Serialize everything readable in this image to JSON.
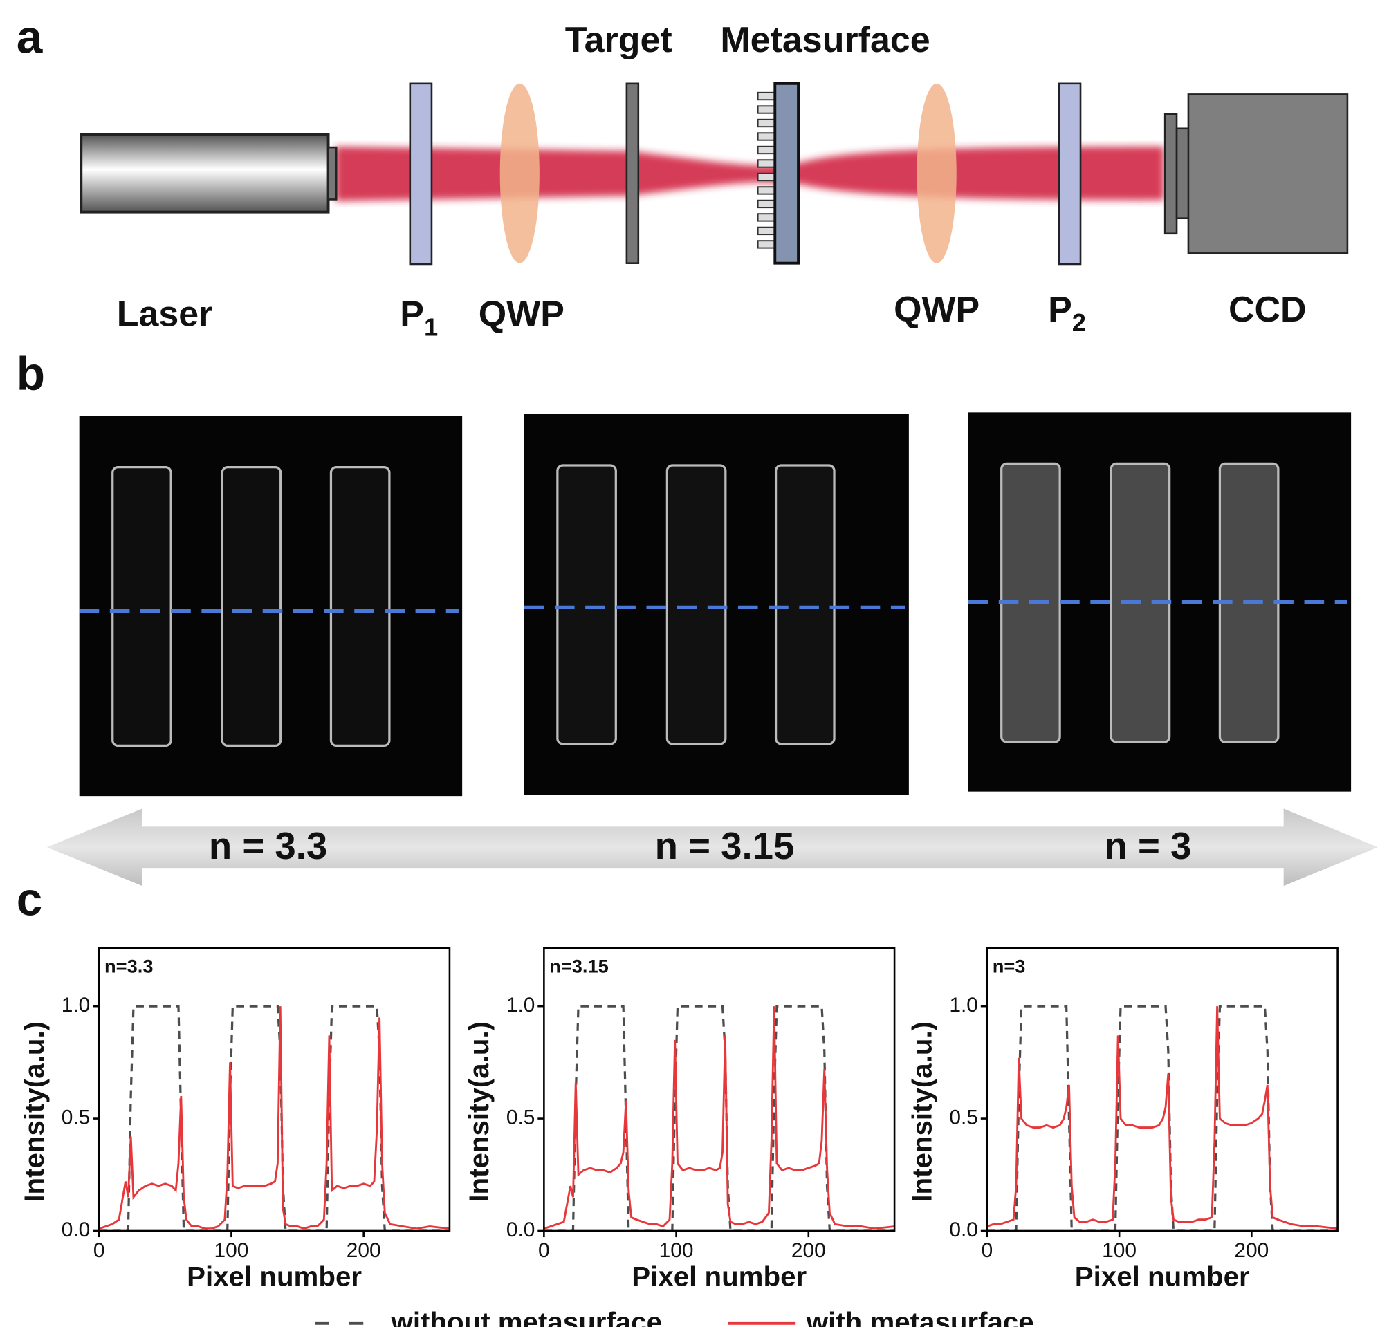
{
  "panel_labels": [
    "a",
    "b",
    "c"
  ],
  "setup": {
    "top_labels": [
      "Target",
      "Metasurface"
    ],
    "bottom_labels": [
      {
        "text": "Laser"
      },
      {
        "text": "P",
        "sub": "1"
      },
      {
        "text": "QWP"
      },
      {
        "text": "QWP"
      },
      {
        "text": "P",
        "sub": "2"
      },
      {
        "text": "CCD"
      }
    ]
  },
  "refractive_index_labels": [
    "n = 3.3",
    "n = 3.15",
    "n = 3"
  ],
  "chart_data": [
    {
      "type": "line",
      "annotation": "n=3.3",
      "x_label": "Pixel number",
      "y_label": "Intensity(a.u.)",
      "xlim": [
        0,
        265
      ],
      "ylim": [
        0,
        1.26
      ],
      "xticks": [
        0,
        100,
        200
      ],
      "yticks": [
        {
          "value": 0,
          "label": "0.0"
        },
        {
          "value": 0.5,
          "label": "0.5"
        },
        {
          "value": 1,
          "label": "1.0"
        }
      ],
      "x": [
        0,
        5,
        10,
        15,
        20,
        22,
        24,
        26,
        30,
        35,
        40,
        45,
        50,
        55,
        58,
        60,
        62,
        64,
        66,
        70,
        75,
        80,
        85,
        90,
        95,
        97,
        99,
        101,
        105,
        110,
        115,
        120,
        125,
        130,
        133,
        135,
        137,
        139,
        141,
        145,
        150,
        155,
        160,
        165,
        170,
        172,
        174,
        176,
        180,
        185,
        190,
        195,
        200,
        205,
        208,
        210,
        212,
        214,
        216,
        220,
        230,
        240,
        250,
        265
      ],
      "series": [
        {
          "name": "without metasurface",
          "color": "#4d4d4d",
          "dashed": true,
          "values": [
            0,
            0,
            0,
            0,
            0,
            0,
            0.6,
            1,
            1,
            1,
            1,
            1,
            1,
            1,
            1,
            1,
            0.5,
            0,
            0,
            0,
            0,
            0,
            0,
            0,
            0,
            0,
            0.6,
            1,
            1,
            1,
            1,
            1,
            1,
            1,
            1,
            1,
            0.8,
            0.2,
            0,
            0,
            0,
            0,
            0,
            0,
            0,
            0,
            0.6,
            1,
            1,
            1,
            1,
            1,
            1,
            1,
            1,
            1,
            0.8,
            0.2,
            0,
            0,
            0,
            0,
            0,
            0
          ]
        },
        {
          "name": "with metasurface",
          "color": "#e8373a",
          "dashed": false,
          "values": [
            0.01,
            0.02,
            0.03,
            0.05,
            0.22,
            0.15,
            0.42,
            0.15,
            0.18,
            0.2,
            0.21,
            0.2,
            0.21,
            0.2,
            0.18,
            0.3,
            0.6,
            0.15,
            0.05,
            0.02,
            0.02,
            0.01,
            0.01,
            0.02,
            0.05,
            0.25,
            0.75,
            0.2,
            0.19,
            0.2,
            0.2,
            0.2,
            0.2,
            0.21,
            0.22,
            0.3,
            1.0,
            0.1,
            0.03,
            0.02,
            0.02,
            0.01,
            0.02,
            0.02,
            0.05,
            0.3,
            0.87,
            0.18,
            0.2,
            0.19,
            0.2,
            0.2,
            0.21,
            0.2,
            0.22,
            0.45,
            0.95,
            0.3,
            0.08,
            0.03,
            0.02,
            0.01,
            0.02,
            0.01
          ]
        }
      ]
    },
    {
      "type": "line",
      "annotation": "n=3.15",
      "x_label": "Pixel number",
      "y_label": "Intensity(a.u.)",
      "xlim": [
        0,
        265
      ],
      "ylim": [
        0,
        1.26
      ],
      "xticks": [
        0,
        100,
        200
      ],
      "yticks": [
        {
          "value": 0,
          "label": "0.0"
        },
        {
          "value": 0.5,
          "label": "0.5"
        },
        {
          "value": 1,
          "label": "1.0"
        }
      ],
      "x": [
        0,
        5,
        10,
        15,
        20,
        22,
        24,
        26,
        30,
        35,
        40,
        45,
        50,
        55,
        58,
        60,
        62,
        64,
        66,
        70,
        75,
        80,
        85,
        90,
        95,
        97,
        99,
        101,
        105,
        110,
        115,
        120,
        125,
        130,
        133,
        135,
        137,
        139,
        141,
        145,
        150,
        155,
        160,
        165,
        170,
        172,
        174,
        176,
        180,
        185,
        190,
        195,
        200,
        205,
        208,
        210,
        212,
        214,
        216,
        220,
        230,
        240,
        250,
        265
      ],
      "series": [
        {
          "name": "without metasurface",
          "color": "#4d4d4d",
          "dashed": true,
          "values": [
            0,
            0,
            0,
            0,
            0,
            0,
            0.6,
            1,
            1,
            1,
            1,
            1,
            1,
            1,
            1,
            1,
            0.5,
            0,
            0,
            0,
            0,
            0,
            0,
            0,
            0,
            0,
            0.6,
            1,
            1,
            1,
            1,
            1,
            1,
            1,
            1,
            1,
            0.8,
            0.2,
            0,
            0,
            0,
            0,
            0,
            0,
            0,
            0,
            0.6,
            1,
            1,
            1,
            1,
            1,
            1,
            1,
            1,
            1,
            0.8,
            0.2,
            0,
            0,
            0,
            0,
            0,
            0
          ]
        },
        {
          "name": "with metasurface",
          "color": "#e8373a",
          "dashed": false,
          "values": [
            0.01,
            0.02,
            0.03,
            0.04,
            0.2,
            0.15,
            0.66,
            0.25,
            0.27,
            0.28,
            0.27,
            0.27,
            0.26,
            0.28,
            0.3,
            0.35,
            0.58,
            0.18,
            0.06,
            0.05,
            0.04,
            0.03,
            0.03,
            0.02,
            0.05,
            0.3,
            0.85,
            0.3,
            0.27,
            0.28,
            0.27,
            0.27,
            0.28,
            0.27,
            0.28,
            0.35,
            0.87,
            0.12,
            0.04,
            0.03,
            0.03,
            0.04,
            0.03,
            0.04,
            0.08,
            0.4,
            1.0,
            0.3,
            0.27,
            0.28,
            0.27,
            0.27,
            0.28,
            0.29,
            0.3,
            0.4,
            0.72,
            0.28,
            0.08,
            0.03,
            0.02,
            0.02,
            0.01,
            0.02
          ]
        }
      ]
    },
    {
      "type": "line",
      "annotation": "n=3",
      "x_label": "Pixel number",
      "y_label": "Intensity(a.u.)",
      "xlim": [
        0,
        265
      ],
      "ylim": [
        0,
        1.26
      ],
      "xticks": [
        0,
        100,
        200
      ],
      "yticks": [
        {
          "value": 0,
          "label": "0.0"
        },
        {
          "value": 0.5,
          "label": "0.5"
        },
        {
          "value": 1,
          "label": "1.0"
        }
      ],
      "x": [
        0,
        5,
        10,
        15,
        20,
        22,
        24,
        26,
        30,
        35,
        40,
        45,
        50,
        55,
        58,
        60,
        62,
        64,
        66,
        70,
        75,
        80,
        85,
        90,
        95,
        97,
        99,
        101,
        105,
        110,
        115,
        120,
        125,
        130,
        133,
        135,
        137,
        139,
        141,
        145,
        150,
        155,
        160,
        165,
        170,
        172,
        174,
        176,
        180,
        185,
        190,
        195,
        200,
        205,
        208,
        210,
        212,
        214,
        216,
        220,
        230,
        240,
        250,
        265
      ],
      "series": [
        {
          "name": "without metasurface",
          "color": "#4d4d4d",
          "dashed": true,
          "values": [
            0,
            0,
            0,
            0,
            0,
            0,
            0.6,
            1,
            1,
            1,
            1,
            1,
            1,
            1,
            1,
            1,
            0.5,
            0,
            0,
            0,
            0,
            0,
            0,
            0,
            0,
            0,
            0.6,
            1,
            1,
            1,
            1,
            1,
            1,
            1,
            1,
            1,
            0.8,
            0.2,
            0,
            0,
            0,
            0,
            0,
            0,
            0,
            0,
            0.6,
            1,
            1,
            1,
            1,
            1,
            1,
            1,
            1,
            1,
            0.8,
            0.2,
            0,
            0,
            0,
            0,
            0,
            0
          ]
        },
        {
          "name": "with metasurface",
          "color": "#e8373a",
          "dashed": false,
          "values": [
            0.02,
            0.03,
            0.03,
            0.04,
            0.05,
            0.2,
            0.77,
            0.5,
            0.47,
            0.46,
            0.46,
            0.47,
            0.46,
            0.47,
            0.5,
            0.55,
            0.65,
            0.2,
            0.06,
            0.04,
            0.04,
            0.05,
            0.04,
            0.04,
            0.05,
            0.3,
            0.87,
            0.5,
            0.47,
            0.47,
            0.46,
            0.46,
            0.46,
            0.47,
            0.5,
            0.55,
            0.7,
            0.15,
            0.05,
            0.04,
            0.04,
            0.04,
            0.05,
            0.05,
            0.06,
            0.4,
            1.0,
            0.5,
            0.48,
            0.47,
            0.47,
            0.47,
            0.48,
            0.5,
            0.52,
            0.58,
            0.65,
            0.2,
            0.06,
            0.05,
            0.03,
            0.02,
            0.02,
            0.01
          ]
        }
      ]
    }
  ]
}
